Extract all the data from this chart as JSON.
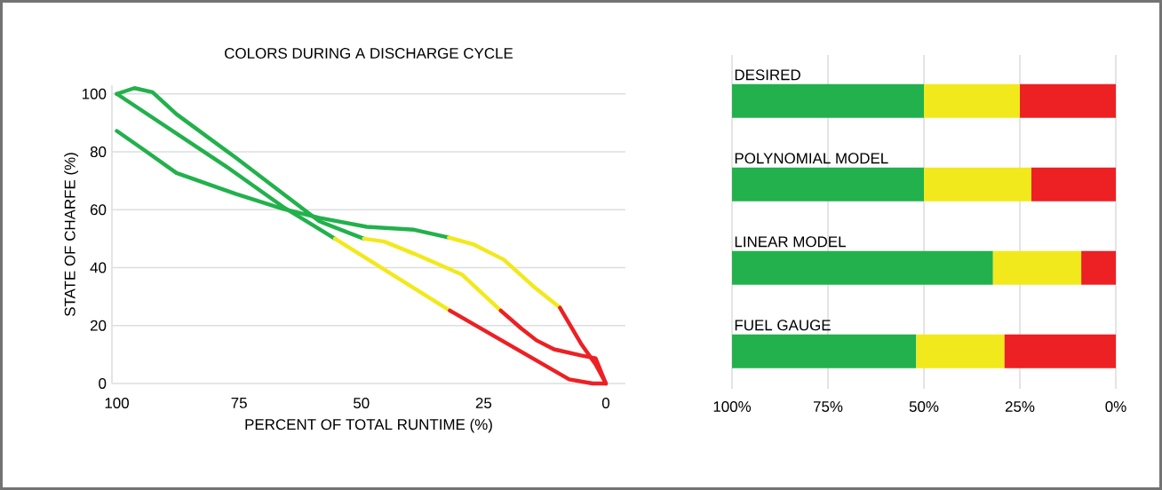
{
  "chart_data": [
    {
      "type": "line",
      "title": "COLORS DURING A DISCHARGE CYCLE",
      "xlabel": "PERCENT OF TOTAL RUNTIME (%)",
      "ylabel": "STATE OF CHARFE (%)",
      "xlim": [
        101,
        -4
      ],
      "ylim": [
        0,
        103
      ],
      "xticks": [
        100,
        75,
        50,
        25,
        0
      ],
      "yticks": [
        0,
        20,
        40,
        60,
        80,
        100
      ],
      "grid": "y",
      "series": [
        {
          "color": "#22b14c",
          "x": [
            100,
            77.7,
            66,
            55.4
          ],
          "values": [
            100,
            75,
            61,
            50
          ]
        },
        {
          "color": "#f2e91c",
          "x": [
            55.4,
            31.9
          ],
          "values": [
            50,
            25.2
          ]
        },
        {
          "color": "#ed2024",
          "x": [
            31.9,
            7.5,
            2.7,
            0
          ],
          "values": [
            25.2,
            1.4,
            0,
            0
          ]
        },
        {
          "color": "#22b14c",
          "x": [
            100,
            96.4,
            92.7,
            87.8,
            75.7,
            66,
            58.6,
            49.5
          ],
          "values": [
            100,
            102,
            100.6,
            93,
            78,
            65.5,
            56,
            50
          ]
        },
        {
          "color": "#f2e91c",
          "x": [
            49.5,
            45.3,
            39.2,
            29.4,
            21.5
          ],
          "values": [
            50,
            49,
            44.8,
            37.6,
            25.2
          ]
        },
        {
          "color": "#ed2024",
          "x": [
            21.5,
            17.3,
            14.2,
            10.6,
            5.1,
            2.1,
            0
          ],
          "values": [
            25.2,
            19,
            14.9,
            11.8,
            9.7,
            8.7,
            0
          ]
        },
        {
          "color": "#22b14c",
          "x": [
            100,
            93.9,
            87.8,
            75.7,
            66,
            58.6,
            48.9,
            39.2,
            32.1
          ],
          "values": [
            87.2,
            80,
            72.7,
            65.5,
            60.3,
            57.2,
            54.1,
            53.1,
            50.4
          ]
        },
        {
          "color": "#f2e91c",
          "x": [
            32.1,
            27,
            20.9,
            14.8,
            9.4
          ],
          "values": [
            50.4,
            48,
            42.8,
            33.5,
            26.2
          ]
        },
        {
          "color": "#ed2024",
          "x": [
            9.4,
            5.1,
            2.1,
            0
          ],
          "values": [
            26.2,
            13.8,
            6.6,
            0
          ]
        }
      ]
    },
    {
      "type": "bar",
      "orientation": "horizontal",
      "stacked": true,
      "categories": [
        "DESIRED",
        "POLYNOMIAL MODEL",
        "LINEAR MODEL",
        "FUEL GAUGE"
      ],
      "xlim": [
        100,
        0
      ],
      "xticks": [
        {
          "value": 100,
          "label": "100%"
        },
        {
          "value": 75,
          "label": "75%"
        },
        {
          "value": 50,
          "label": "50%"
        },
        {
          "value": 25,
          "label": "25%"
        },
        {
          "value": 0,
          "label": "0%"
        }
      ],
      "grid": "x",
      "series": [
        {
          "color": "#ed2024",
          "values": [
            25,
            22,
            9,
            29
          ]
        },
        {
          "color": "#f2e91c",
          "values": [
            25,
            28,
            23,
            23
          ]
        },
        {
          "color": "#22b14c",
          "values": [
            50,
            50,
            68,
            48
          ]
        }
      ]
    }
  ]
}
